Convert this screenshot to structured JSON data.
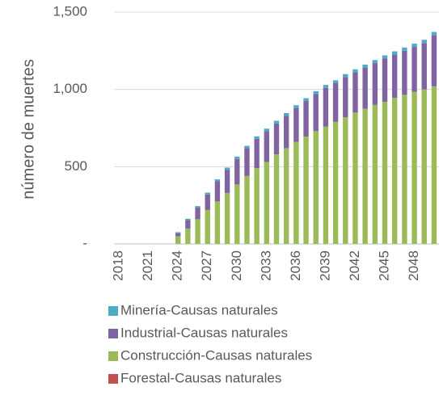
{
  "chart_data": {
    "type": "stacked_bar",
    "y_label": "número de muertes",
    "categories": [
      "2018",
      null,
      null,
      "2021",
      null,
      null,
      "2024",
      null,
      null,
      "2027",
      null,
      null,
      "2030",
      null,
      null,
      "2033",
      null,
      null,
      "2036",
      null,
      null,
      "2039",
      null,
      null,
      "2042",
      null,
      null,
      "2045",
      null,
      null,
      "2048",
      null,
      null
    ],
    "series": [
      {
        "name": "Forestal-Causas naturales",
        "color": "#c0504d",
        "values": [
          0,
          0,
          0,
          0,
          0,
          0,
          0,
          0,
          0,
          0,
          0,
          0,
          0,
          0,
          0,
          0,
          0,
          0,
          0,
          0,
          0,
          0,
          0,
          0,
          0,
          0,
          0,
          0,
          0,
          0,
          0,
          0,
          0
        ]
      },
      {
        "name": "Construcción-Causas naturales",
        "color": "#9bbb59",
        "values": [
          0,
          0,
          0,
          0,
          0,
          0,
          50,
          100,
          160,
          220,
          275,
          330,
          385,
          440,
          490,
          530,
          580,
          620,
          660,
          695,
          730,
          760,
          790,
          820,
          850,
          875,
          900,
          920,
          945,
          965,
          985,
          1000,
          1020
        ]
      },
      {
        "name": "Industrial-Causas naturales",
        "color": "#8064a2",
        "values": [
          0,
          0,
          0,
          0,
          0,
          0,
          20,
          55,
          75,
          100,
          130,
          150,
          165,
          180,
          190,
          200,
          200,
          210,
          220,
          230,
          240,
          250,
          250,
          260,
          260,
          265,
          270,
          280,
          280,
          285,
          290,
          300,
          330
        ]
      },
      {
        "name": "Minería-Causas naturales",
        "color": "#4bacc6",
        "values": [
          0,
          0,
          0,
          0,
          0,
          0,
          6,
          8,
          10,
          12,
          13,
          14,
          15,
          15,
          16,
          16,
          17,
          17,
          18,
          18,
          18,
          19,
          19,
          19,
          20,
          20,
          20,
          20,
          21,
          21,
          21,
          21,
          22
        ]
      }
    ],
    "ylim": [
      0,
      1500
    ],
    "yticks": [
      {
        "value": 0,
        "label": "-"
      },
      500,
      {
        "value": 1000,
        "label": "1,000"
      },
      {
        "value": 1500,
        "label": "1,500"
      }
    ],
    "grid": true
  }
}
